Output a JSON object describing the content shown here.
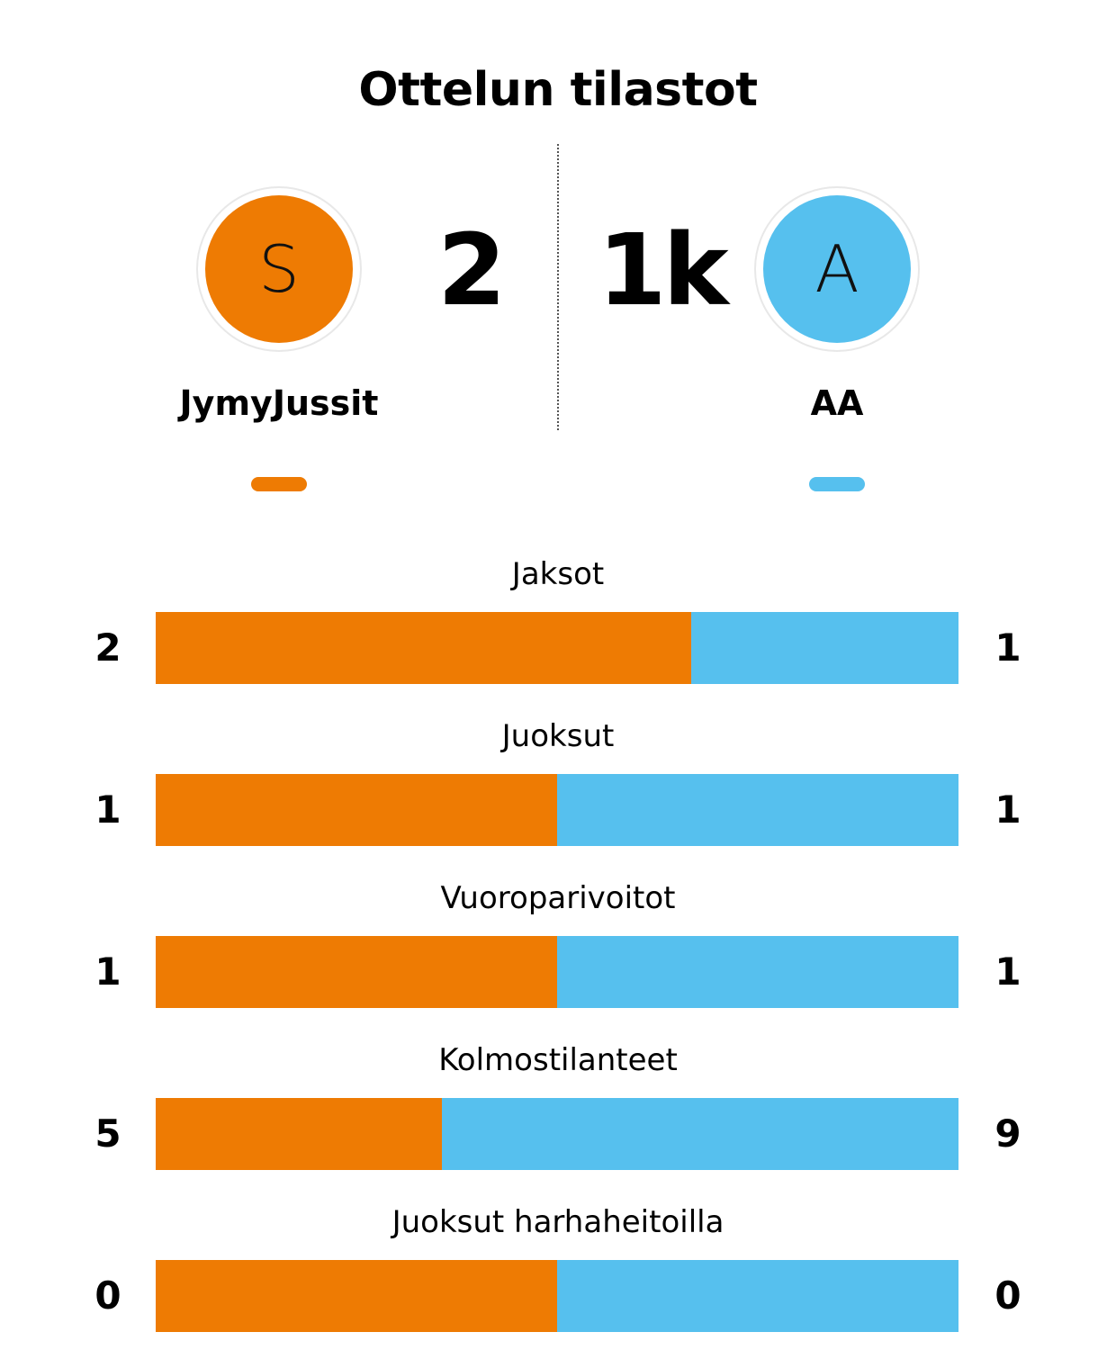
{
  "title": "Ottelun tilastot",
  "colors": {
    "home": "#ee7b03",
    "away": "#56c0ee"
  },
  "home": {
    "avatar_letter": "S",
    "score": "2",
    "name": "JymyJussit"
  },
  "away": {
    "avatar_letter": "A",
    "score": "1k",
    "name": "AA"
  },
  "stats": [
    {
      "label": "Jaksot",
      "home": "2",
      "away": "1",
      "home_share": 0.667
    },
    {
      "label": "Juoksut",
      "home": "1",
      "away": "1",
      "home_share": 0.5
    },
    {
      "label": "Vuoroparivoitot",
      "home": "1",
      "away": "1",
      "home_share": 0.5
    },
    {
      "label": "Kolmostilanteet",
      "home": "5",
      "away": "9",
      "home_share": 0.357
    },
    {
      "label": "Juoksut harhaheitoilla",
      "home": "0",
      "away": "0",
      "home_share": 0.5
    }
  ]
}
